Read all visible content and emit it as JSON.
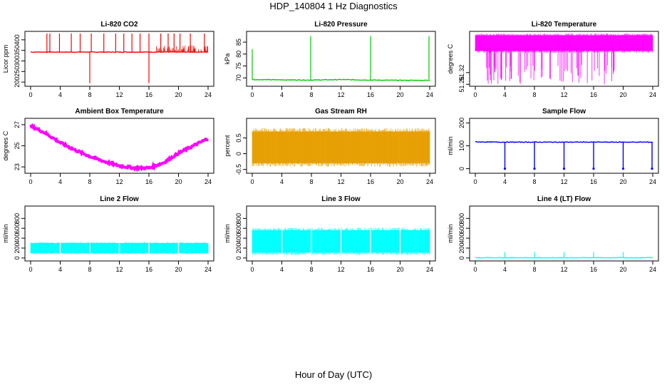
{
  "page": {
    "title": "HDP_140804  1 Hz Diagnostics",
    "x_title": "Hour of Day (UTC)"
  },
  "chart_data": [
    {
      "type": "line",
      "title": "Li-820 CO2",
      "xlabel": "",
      "ylabel": "Licor ppm",
      "xlim": [
        0,
        24
      ],
      "xticks": [
        0,
        4,
        8,
        12,
        16,
        20,
        24
      ],
      "ylim": [
        180,
        440
      ],
      "yticks": [
        200,
        250,
        300,
        350,
        400
      ],
      "color": "#ff0000",
      "baseline": 342,
      "x": [
        0,
        4,
        8,
        12,
        16,
        20,
        24
      ],
      "values": [
        342,
        342,
        342,
        342,
        342,
        342,
        342
      ],
      "spikes_up": [
        2.2,
        2.6,
        3.9,
        5.5,
        6.7,
        8.2,
        9.9,
        11.5,
        12.6,
        13.7,
        14.8,
        16.0,
        17.6,
        18.6,
        19.4,
        20.2,
        21.6,
        23.5
      ],
      "spike_up_value": 430,
      "spikes_down": [
        8.0,
        16.0
      ],
      "spike_down_value": 195,
      "noise_band": [
        340,
        375
      ]
    },
    {
      "type": "line",
      "title": "Li-820 Pressure",
      "xlabel": "",
      "ylabel": "kPa",
      "xlim": [
        0,
        24
      ],
      "xticks": [
        0,
        4,
        8,
        12,
        16,
        20,
        24
      ],
      "ylim": [
        66.5,
        89.5
      ],
      "yticks": [
        70,
        75,
        80,
        85
      ],
      "color": "#00cc00",
      "x": [
        0,
        4,
        8,
        12,
        16,
        20,
        24
      ],
      "values": [
        69.3,
        69.2,
        69.1,
        69.3,
        69.1,
        69.0,
        69.0
      ],
      "spikes_up": [
        7.9,
        16.0,
        23.9
      ],
      "spike_up_value": 87.5,
      "start_value": 82.0
    },
    {
      "type": "area",
      "title": "Li-820 Temperature",
      "xlabel": "",
      "ylabel": "degrees C",
      "xlim": [
        0,
        24
      ],
      "xticks": [
        0,
        4,
        8,
        12,
        16,
        20,
        24
      ],
      "ylim": [
        51.25,
        51.53
      ],
      "yticks": [
        51.26,
        51.32
      ],
      "color": "#ff00ff",
      "band": [
        51.43,
        51.51
      ]
    },
    {
      "type": "line",
      "title": "Ambient Box Temperature",
      "xlabel": "",
      "ylabel": "degrees C",
      "xlim": [
        0,
        24
      ],
      "xticks": [
        0,
        4,
        8,
        12,
        16,
        20,
        24
      ],
      "ylim": [
        22.4,
        27.6
      ],
      "yticks": [
        23,
        25,
        27
      ],
      "color": "#ff00ff",
      "x": [
        0,
        2,
        4,
        6,
        8,
        10,
        12,
        14,
        16,
        18,
        20,
        22,
        24
      ],
      "values": [
        26.9,
        26.2,
        25.3,
        24.6,
        24.0,
        23.5,
        23.1,
        22.9,
        22.9,
        23.4,
        24.3,
        25.0,
        25.7
      ]
    },
    {
      "type": "area",
      "title": "Gas Stream RH",
      "xlabel": "",
      "ylabel": "percent",
      "xlim": [
        0,
        24
      ],
      "xticks": [
        0,
        4,
        8,
        12,
        16,
        20,
        24
      ],
      "ylim": [
        -0.62,
        1.12
      ],
      "yticks": [
        -0.5,
        0.0,
        0.5
      ],
      "color": "#e69f00",
      "band": [
        -0.3,
        0.7
      ]
    },
    {
      "type": "line",
      "title": "Sample Flow",
      "xlabel": "",
      "ylabel": "ml/min",
      "xlim": [
        0,
        24
      ],
      "xticks": [
        0,
        4,
        8,
        12,
        16,
        20,
        24
      ],
      "ylim": [
        -20,
        220
      ],
      "yticks": [
        0,
        100,
        200
      ],
      "color": "#0000ff",
      "x": [
        0,
        4,
        8,
        12,
        16,
        20,
        24
      ],
      "values": [
        117,
        116,
        116,
        116,
        116,
        116,
        116
      ],
      "drops": [
        4.0,
        8.0,
        12.0,
        16.0,
        20.0,
        24.0
      ],
      "drop_value": 0
    },
    {
      "type": "area",
      "title": "Line 2 Flow",
      "xlabel": "",
      "ylabel": "ml/min",
      "xlim": [
        0,
        24
      ],
      "xticks": [
        0,
        4,
        8,
        12,
        16,
        20,
        24
      ],
      "ylim": [
        -60,
        1050
      ],
      "yticks": [
        0,
        200,
        400,
        600,
        800
      ],
      "color": "#00ffff",
      "band": [
        100,
        300
      ]
    },
    {
      "type": "area",
      "title": "Line 3 Flow",
      "xlabel": "",
      "ylabel": "ml/min",
      "xlim": [
        0,
        24
      ],
      "xticks": [
        0,
        4,
        8,
        12,
        16,
        20,
        24
      ],
      "ylim": [
        -60,
        1050
      ],
      "yticks": [
        0,
        200,
        400,
        600,
        800
      ],
      "color": "#00ffff",
      "band": [
        110,
        560
      ]
    },
    {
      "type": "line",
      "title": "Line 4 (LT) Flow",
      "xlabel": "",
      "ylabel": "ml/min",
      "xlim": [
        0,
        24
      ],
      "xticks": [
        0,
        4,
        8,
        12,
        16,
        20,
        24
      ],
      "ylim": [
        -60,
        1050
      ],
      "yticks": [
        0,
        200,
        400,
        600,
        800
      ],
      "color": "#00ffff",
      "x": [
        0,
        24
      ],
      "values": [
        5,
        5
      ],
      "spikes_up": [
        4.0,
        8.0,
        12.0,
        16.0,
        20.0
      ],
      "spike_up_value": 120
    }
  ]
}
